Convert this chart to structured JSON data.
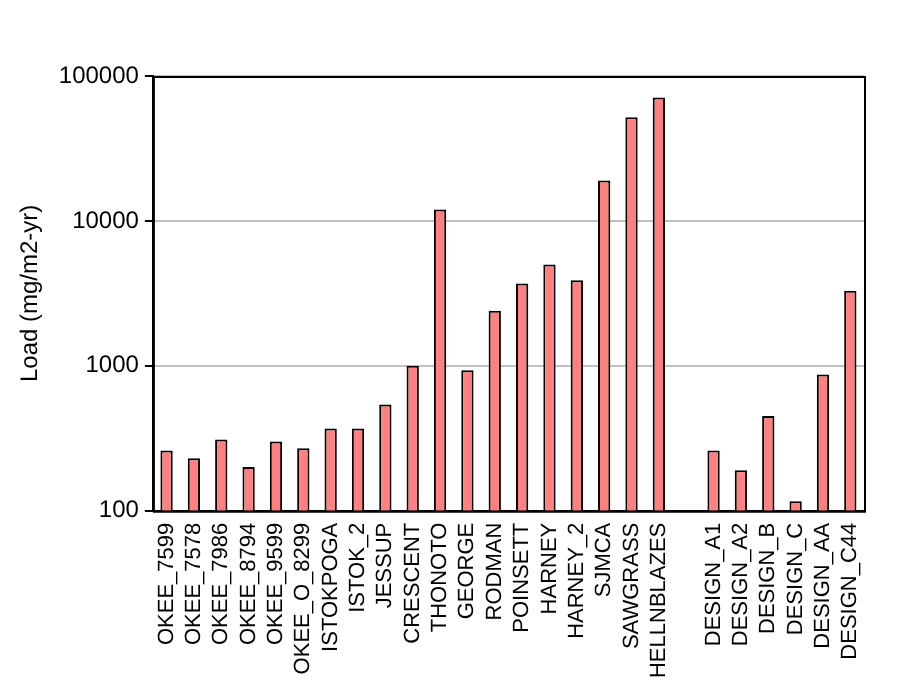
{
  "chart_data": {
    "type": "bar",
    "ylabel": "Load (mg/m2-yr)",
    "categories": [
      "OKEE_7599",
      "OKEE_7578",
      "OKEE_7986",
      "OKEE_8794",
      "OKEE_9599",
      "OKEE_O_8299",
      "ISTOKPOGA",
      "ISTOK_2",
      "JESSUP",
      "CRESCENT",
      "THONOTO",
      "GEORGE",
      "RODMAN",
      "POINSETT",
      "HARNEY",
      "HARNEY_2",
      "SJMCA",
      "SAWGRASS",
      "HELLNBLAZES",
      null,
      "DESIGN_A1",
      "DESIGN_A2",
      "DESIGN_B",
      "DESIGN_C",
      "DESIGN_AA",
      "DESIGN_C44"
    ],
    "values": [
      260,
      230,
      310,
      200,
      300,
      270,
      370,
      370,
      540,
      1000,
      12000,
      930,
      2400,
      3700,
      5000,
      3900,
      19000,
      52000,
      71000,
      null,
      260,
      190,
      450,
      116,
      870,
      3300
    ],
    "color": "#ff8080",
    "log": "y",
    "ylim": [
      100,
      100000
    ],
    "yticks": [
      100,
      1000,
      10000,
      100000
    ],
    "grid": "y",
    "legend": false
  }
}
